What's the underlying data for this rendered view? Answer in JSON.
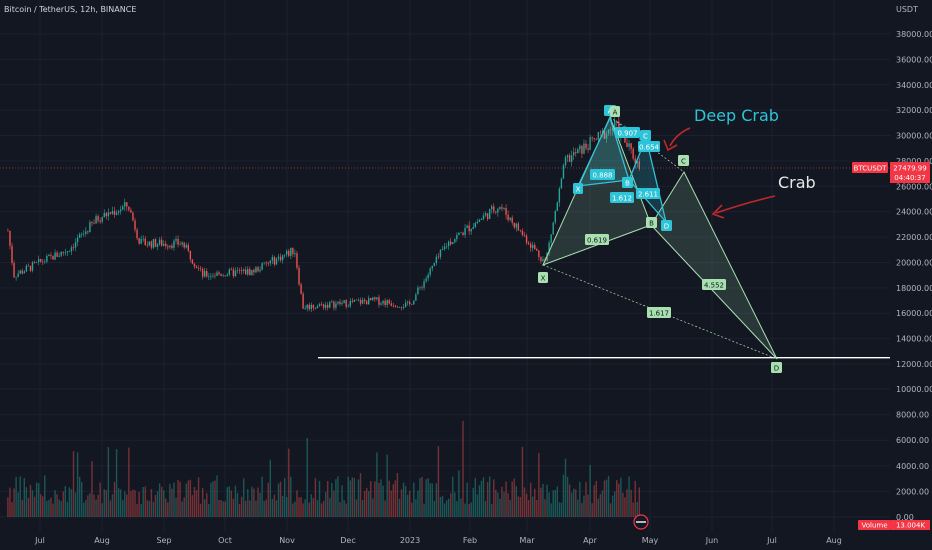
{
  "header": {
    "title": "Bitcoin / TetherUS, 12h, BINANCE"
  },
  "price_axis": {
    "currency": "USDT",
    "ticks": [
      "38000.00",
      "36000.00",
      "34000.00",
      "32000.00",
      "30000.00",
      "28000.00",
      "26000.00",
      "24000.00",
      "22000.00",
      "20000.00",
      "18000.00",
      "16000.00",
      "14000.00",
      "12000.00",
      "10000.00",
      "8000.00",
      "6000.00",
      "4000.00",
      "2000.00",
      "0.00"
    ],
    "symbol_tag": "BTCUSDT",
    "last_price": "27479.99",
    "countdown": "04:40:37",
    "volume_label": "Volume",
    "volume_value": "13.004K"
  },
  "time_axis": {
    "ticks": [
      "Jul",
      "Aug",
      "Sep",
      "Oct",
      "Nov",
      "Dec",
      "2023",
      "Feb",
      "Mar",
      "Apr",
      "May",
      "Jun",
      "Jul",
      "Aug"
    ]
  },
  "annotations": {
    "deep_crab": "Deep Crab",
    "crab": "Crab"
  },
  "deep_crab_points": {
    "X": "X",
    "A": "A",
    "B": "B",
    "C": "C",
    "D": "D"
  },
  "deep_crab_ratios": {
    "ab": "0.888",
    "bc": "0.907",
    "cd": "2.611",
    "xb": "0.654",
    "ac": "1.612"
  },
  "crab_points": {
    "X": "X",
    "A": "A",
    "B": "B",
    "C": "C",
    "D": "D"
  },
  "crab_ratios": {
    "xb": "0.619",
    "bd": "4.552",
    "xd": "1.617"
  },
  "colors": {
    "background": "#131722",
    "up": "#26a69a",
    "down": "#ef5350",
    "deep_crab": "#2ec4d8",
    "crab": "#a8e0b0",
    "annotation_arrow": "#c0282c",
    "price_tag": "#f23645"
  },
  "chart_data": {
    "type": "candlestick",
    "title": "Bitcoin / TetherUS, 12h, BINANCE",
    "price_range": [
      0,
      39000
    ],
    "x_ticks": [
      "Jul",
      "Aug",
      "Sep",
      "Oct",
      "Nov",
      "Dec",
      "2023",
      "Feb",
      "Mar",
      "Apr",
      "May",
      "Jun",
      "Jul",
      "Aug"
    ],
    "price_path_approx": [
      [
        "2022-06-15",
        22500
      ],
      [
        "2022-06-18",
        19000
      ],
      [
        "2022-07-01",
        20000
      ],
      [
        "2022-07-15",
        21000
      ],
      [
        "2022-07-30",
        23500
      ],
      [
        "2022-08-14",
        24500
      ],
      [
        "2022-08-20",
        21500
      ],
      [
        "2022-09-10",
        21500
      ],
      [
        "2022-09-20",
        19000
      ],
      [
        "2022-10-15",
        19300
      ],
      [
        "2022-11-05",
        21000
      ],
      [
        "2022-11-09",
        16500
      ],
      [
        "2022-12-15",
        17000
      ],
      [
        "2023-01-01",
        16600
      ],
      [
        "2023-01-20",
        21500
      ],
      [
        "2023-02-15",
        24500
      ],
      [
        "2023-03-10",
        20000
      ],
      [
        "2023-03-20",
        28000
      ],
      [
        "2023-04-14",
        30800
      ],
      [
        "2023-04-26",
        27500
      ]
    ],
    "horizontal_line": 12500,
    "deep_crab_prices": {
      "X": 26300,
      "A": 31000,
      "B": 26400,
      "C": 29700,
      "D": 22600
    },
    "crab_prices": {
      "X": 20000,
      "A": 31000,
      "B": 23500,
      "C": 27200,
      "D": 12500
    }
  }
}
